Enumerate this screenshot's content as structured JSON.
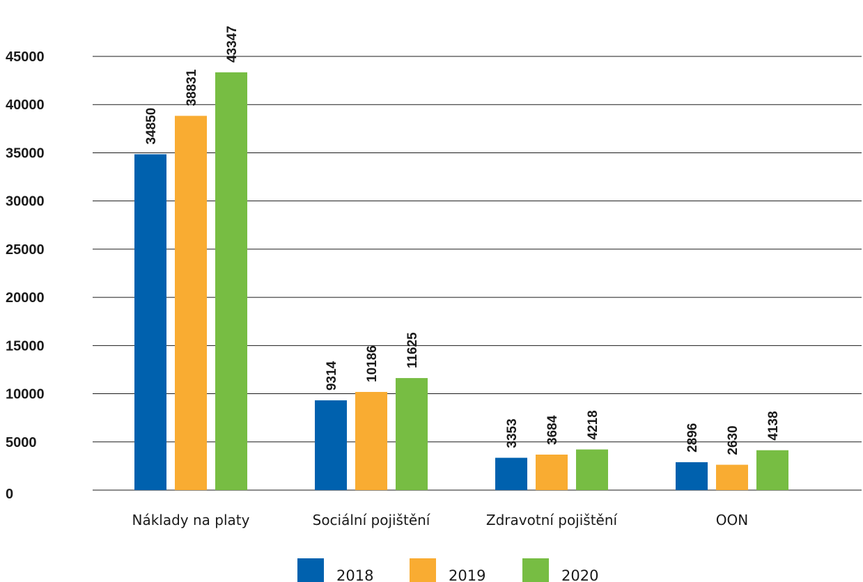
{
  "chart_data": {
    "type": "bar",
    "categories": [
      "Náklady na platy",
      "Sociální pojištění",
      "Zdravotní pojištění",
      "OON"
    ],
    "series": [
      {
        "name": "2018",
        "color": "#0061ae",
        "values": [
          34850,
          9314,
          3353,
          2896
        ]
      },
      {
        "name": "2019",
        "color": "#f9ac32",
        "values": [
          38831,
          10186,
          3684,
          2630
        ]
      },
      {
        "name": "2020",
        "color": "#77bd43",
        "values": [
          43347,
          11625,
          4218,
          4138
        ]
      }
    ],
    "yticks": [
      "0",
      "5000",
      "10000",
      "15000",
      "20000",
      "25000",
      "30000",
      "35000",
      "40000",
      "45000"
    ],
    "ylim": [
      0,
      45000
    ],
    "grid": true,
    "legend": "bottom-center"
  }
}
